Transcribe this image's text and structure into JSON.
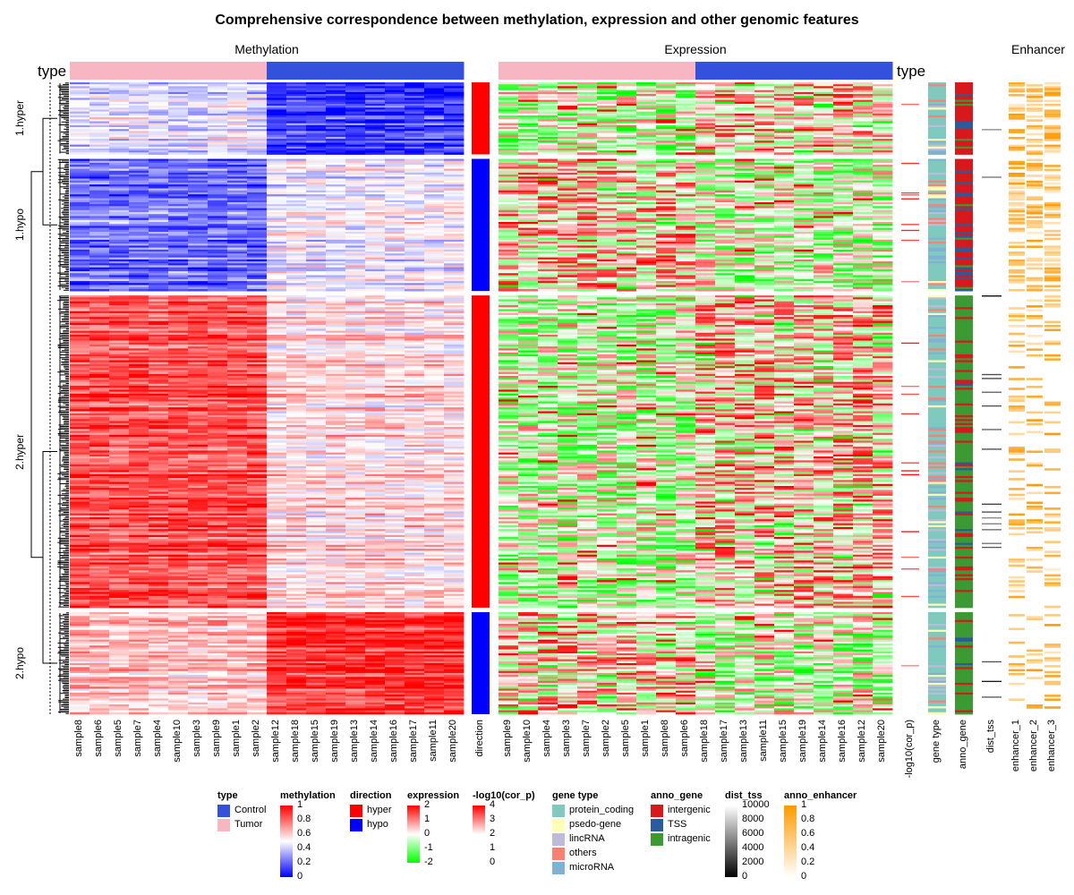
{
  "chart_data": {
    "type": "heatmap",
    "title": "Comprehensive correspondence between methylation, expression and other genomic features",
    "panels": {
      "methylation": "Methylation",
      "expression": "Expression",
      "enhancer": "Enhancer"
    },
    "type_label": "type",
    "slices": [
      {
        "name": "1.hyper",
        "rows": 60,
        "direction": "hyper"
      },
      {
        "name": "1.hypo",
        "rows": 110,
        "direction": "hypo"
      },
      {
        "name": "2.hyper",
        "rows": 260,
        "direction": "hyper"
      },
      {
        "name": "2.hypo",
        "rows": 85,
        "direction": "hypo"
      }
    ],
    "methylation_columns": [
      "sample8",
      "sample6",
      "sample5",
      "sample7",
      "sample4",
      "sample10",
      "sample3",
      "sample9",
      "sample1",
      "sample2",
      "sample12",
      "sample18",
      "sample15",
      "sample19",
      "sample13",
      "sample14",
      "sample16",
      "sample17",
      "sample11",
      "sample20"
    ],
    "methylation_types": [
      "Tumor",
      "Tumor",
      "Tumor",
      "Tumor",
      "Tumor",
      "Tumor",
      "Tumor",
      "Tumor",
      "Tumor",
      "Tumor",
      "Control",
      "Control",
      "Control",
      "Control",
      "Control",
      "Control",
      "Control",
      "Control",
      "Control",
      "Control"
    ],
    "expression_columns": [
      "sample9",
      "sample10",
      "sample4",
      "sample3",
      "sample7",
      "sample2",
      "sample5",
      "sample1",
      "sample8",
      "sample6",
      "sample18",
      "sample17",
      "sample13",
      "sample11",
      "sample15",
      "sample19",
      "sample14",
      "sample16",
      "sample12",
      "sample20"
    ],
    "expression_types": [
      "Tumor",
      "Tumor",
      "Tumor",
      "Tumor",
      "Tumor",
      "Tumor",
      "Tumor",
      "Tumor",
      "Tumor",
      "Tumor",
      "Control",
      "Control",
      "Control",
      "Control",
      "Control",
      "Control",
      "Control",
      "Control",
      "Control",
      "Control"
    ],
    "annotation_columns": [
      "direction",
      "-log10(cor_p)",
      "gene type",
      "anno_gene",
      "dist_tss",
      "enhancer_1",
      "enhancer_2",
      "enhancer_3"
    ],
    "colors": {
      "control": "#3451de",
      "tumor": "#f8b5c2",
      "hyper": "#ff0000",
      "hypo": "#0000ff",
      "meth_high": "#ff0000",
      "meth_mid": "#ffffff",
      "meth_low": "#0000ff",
      "expr_high": "#ff0000",
      "expr_mid": "#ffffff",
      "expr_low": "#00ff00",
      "intergenic": "#d7191c",
      "TSS": "#2b5b9b",
      "intragenic": "#3b9a32",
      "enhancer": "#ff9a00"
    },
    "legends": [
      {
        "title": "type",
        "kind": "discrete",
        "items": [
          {
            "label": "Control",
            "color": "#3451de"
          },
          {
            "label": "Tumor",
            "color": "#f8b5c2"
          }
        ]
      },
      {
        "title": "methylation",
        "kind": "continuous",
        "ticks": [
          "1",
          "0.8",
          "0.6",
          "0.4",
          "0.2",
          "0"
        ],
        "colors": [
          "#ff0000",
          "#ffffff",
          "#0000ff"
        ]
      },
      {
        "title": "direction",
        "kind": "discrete",
        "items": [
          {
            "label": "hyper",
            "color": "#ff0000"
          },
          {
            "label": "hypo",
            "color": "#0000ff"
          }
        ]
      },
      {
        "title": "expression",
        "kind": "continuous",
        "ticks": [
          "2",
          "1",
          "0",
          "-1",
          "-2"
        ],
        "colors": [
          "#ff0000",
          "#ffffff",
          "#00ff00"
        ]
      },
      {
        "title": "-log10(cor_p)",
        "kind": "continuous",
        "ticks": [
          "4",
          "3",
          "2",
          "1",
          "0"
        ],
        "colors": [
          "#ff0000",
          "#ffffff",
          "#ffffff"
        ]
      },
      {
        "title": "gene type",
        "kind": "discrete",
        "items": [
          {
            "label": "protein_coding",
            "color": "#7fc9bf"
          },
          {
            "label": "psedo-gene",
            "color": "#ffffb3"
          },
          {
            "label": "lincRNA",
            "color": "#bebada"
          },
          {
            "label": "others",
            "color": "#fb8072"
          },
          {
            "label": "microRNA",
            "color": "#80b1d3"
          }
        ]
      },
      {
        "title": "anno_gene",
        "kind": "discrete",
        "items": [
          {
            "label": "intergenic",
            "color": "#d7191c"
          },
          {
            "label": "TSS",
            "color": "#2b5b9b"
          },
          {
            "label": "intragenic",
            "color": "#3b9a32"
          }
        ]
      },
      {
        "title": "dist_tss",
        "kind": "continuous",
        "ticks": [
          "10000",
          "8000",
          "6000",
          "4000",
          "2000",
          "0"
        ],
        "colors": [
          "#ffffff",
          "#000000"
        ]
      },
      {
        "title": "anno_enhancer",
        "kind": "continuous",
        "ticks": [
          "1",
          "0.8",
          "0.6",
          "0.4",
          "0.2",
          "0"
        ],
        "colors": [
          "#ff9a00",
          "#ffffff"
        ]
      }
    ]
  }
}
